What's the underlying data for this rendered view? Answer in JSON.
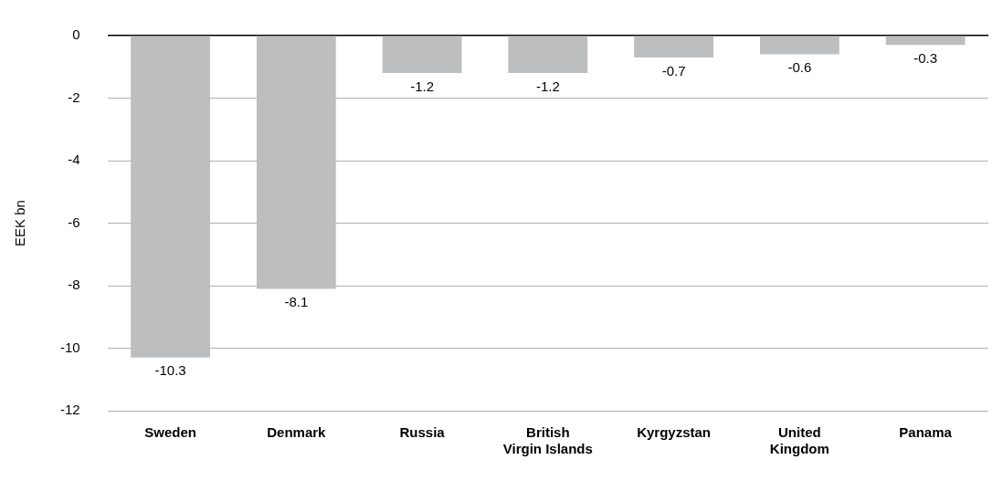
{
  "chart_data": {
    "type": "bar",
    "ylabel": "EEK bn",
    "categories": [
      "Sweden",
      "Denmark",
      "Russia",
      "British\nVirgin Islands",
      "Kyrgyzstan",
      "United\nKingdom",
      "Panama"
    ],
    "values": [
      -10.3,
      -8.1,
      -1.2,
      -1.2,
      -0.7,
      -0.6,
      -0.3
    ],
    "color": "#bdbec0",
    "ylim": [
      -12,
      0
    ],
    "yticks": [
      0,
      -2,
      -4,
      -6,
      -8,
      -10,
      -12
    ],
    "grid": "y",
    "data_labels": true,
    "legend": false
  }
}
